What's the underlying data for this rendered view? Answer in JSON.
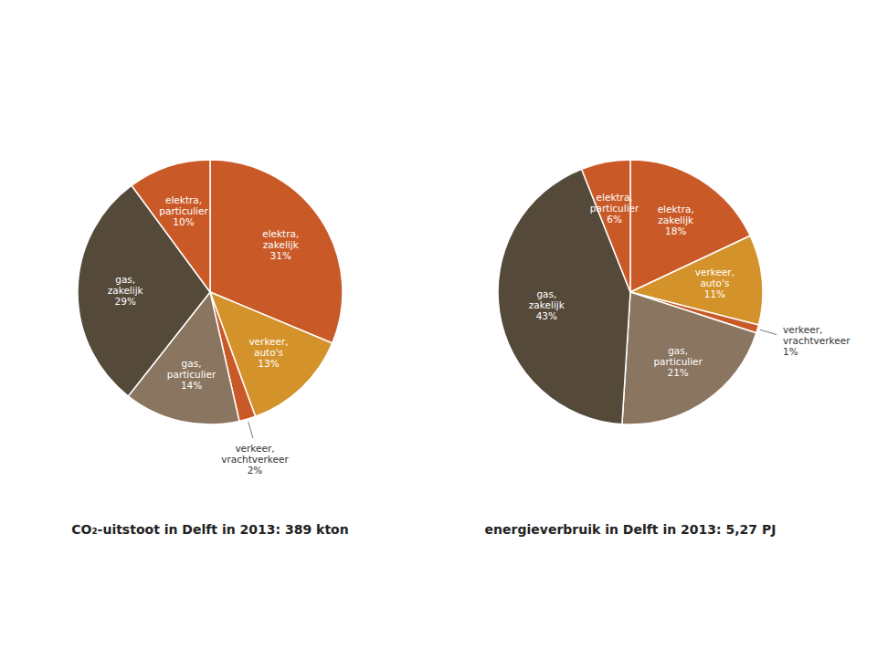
{
  "chart_data": [
    {
      "type": "pie",
      "title": "CO₂-uitstoot in Delft in 2013: 389 kton",
      "categories": [
        "elektra,\nzakelijk",
        "verkeer,\nauto's",
        "verkeer,\nvrachtverkeer",
        "gas,\nparticulier",
        "gas,\nzakelijk",
        "elektra,\nparticulier"
      ],
      "values": [
        31,
        13,
        2,
        14,
        29,
        10
      ],
      "value_labels": [
        "31%",
        "13%",
        "2%",
        "14%",
        "29%",
        "10%"
      ],
      "colors": [
        "#c95a28",
        "#d4922a",
        "#c95a28",
        "#8a7560",
        "#554a3a",
        "#c95a28"
      ],
      "data_labels": true
    },
    {
      "type": "pie",
      "title": "energieverbruik in Delft in 2013: 5,27 PJ",
      "categories": [
        "elektra,\nzakelijk",
        "verkeer,\nauto's",
        "verkeer,\nvrachtverkeer",
        "gas,\nparticulier",
        "gas,\nzakelijk",
        "elektra,\nparticulier"
      ],
      "values": [
        18,
        11,
        1,
        21,
        43,
        6
      ],
      "value_labels": [
        "18%",
        "11%",
        "1%",
        "21%",
        "43%",
        "6%"
      ],
      "colors": [
        "#c95a28",
        "#d4922a",
        "#c95a28",
        "#8a7560",
        "#554a3a",
        "#c95a28"
      ],
      "data_labels": true
    }
  ]
}
